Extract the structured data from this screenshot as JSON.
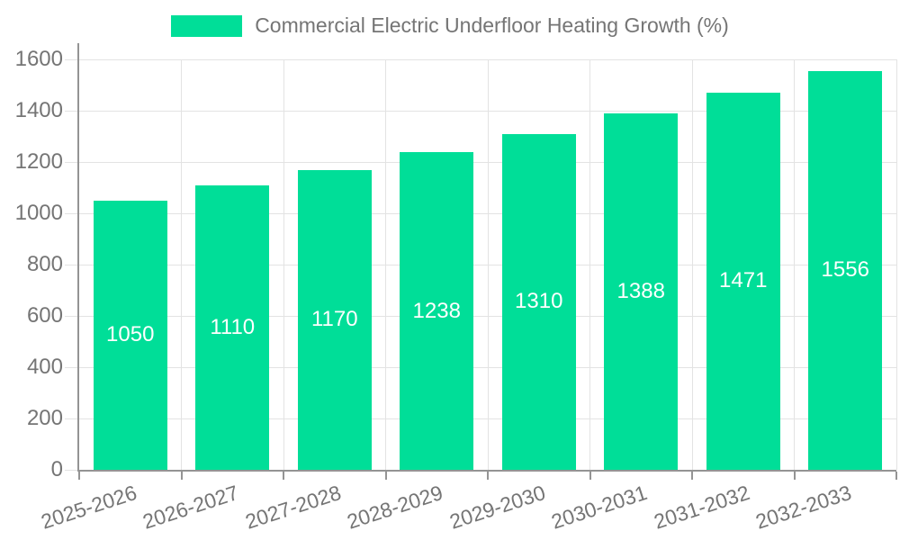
{
  "chart_data": {
    "type": "bar",
    "title": "Commercial Electric Underfloor Heating Growth (%)",
    "categories": [
      "2025-2026",
      "2026-2027",
      "2027-2028",
      "2028-2029",
      "2029-2030",
      "2030-2031",
      "2031-2032",
      "2032-2033"
    ],
    "values": [
      1050,
      1110,
      1170,
      1238,
      1310,
      1388,
      1471,
      1556
    ],
    "xlabel": "",
    "ylabel": "",
    "ylim": [
      0,
      1600
    ],
    "yticks": [
      0,
      200,
      400,
      600,
      800,
      1000,
      1200,
      1400,
      1600
    ],
    "grid": true,
    "legend_position": "top",
    "bar_color": "#00DE98",
    "value_label_color": "#ffffff",
    "axis_text_color": "#757575",
    "grid_color": "#e3e3e3",
    "axis_line_color": "#949494"
  }
}
